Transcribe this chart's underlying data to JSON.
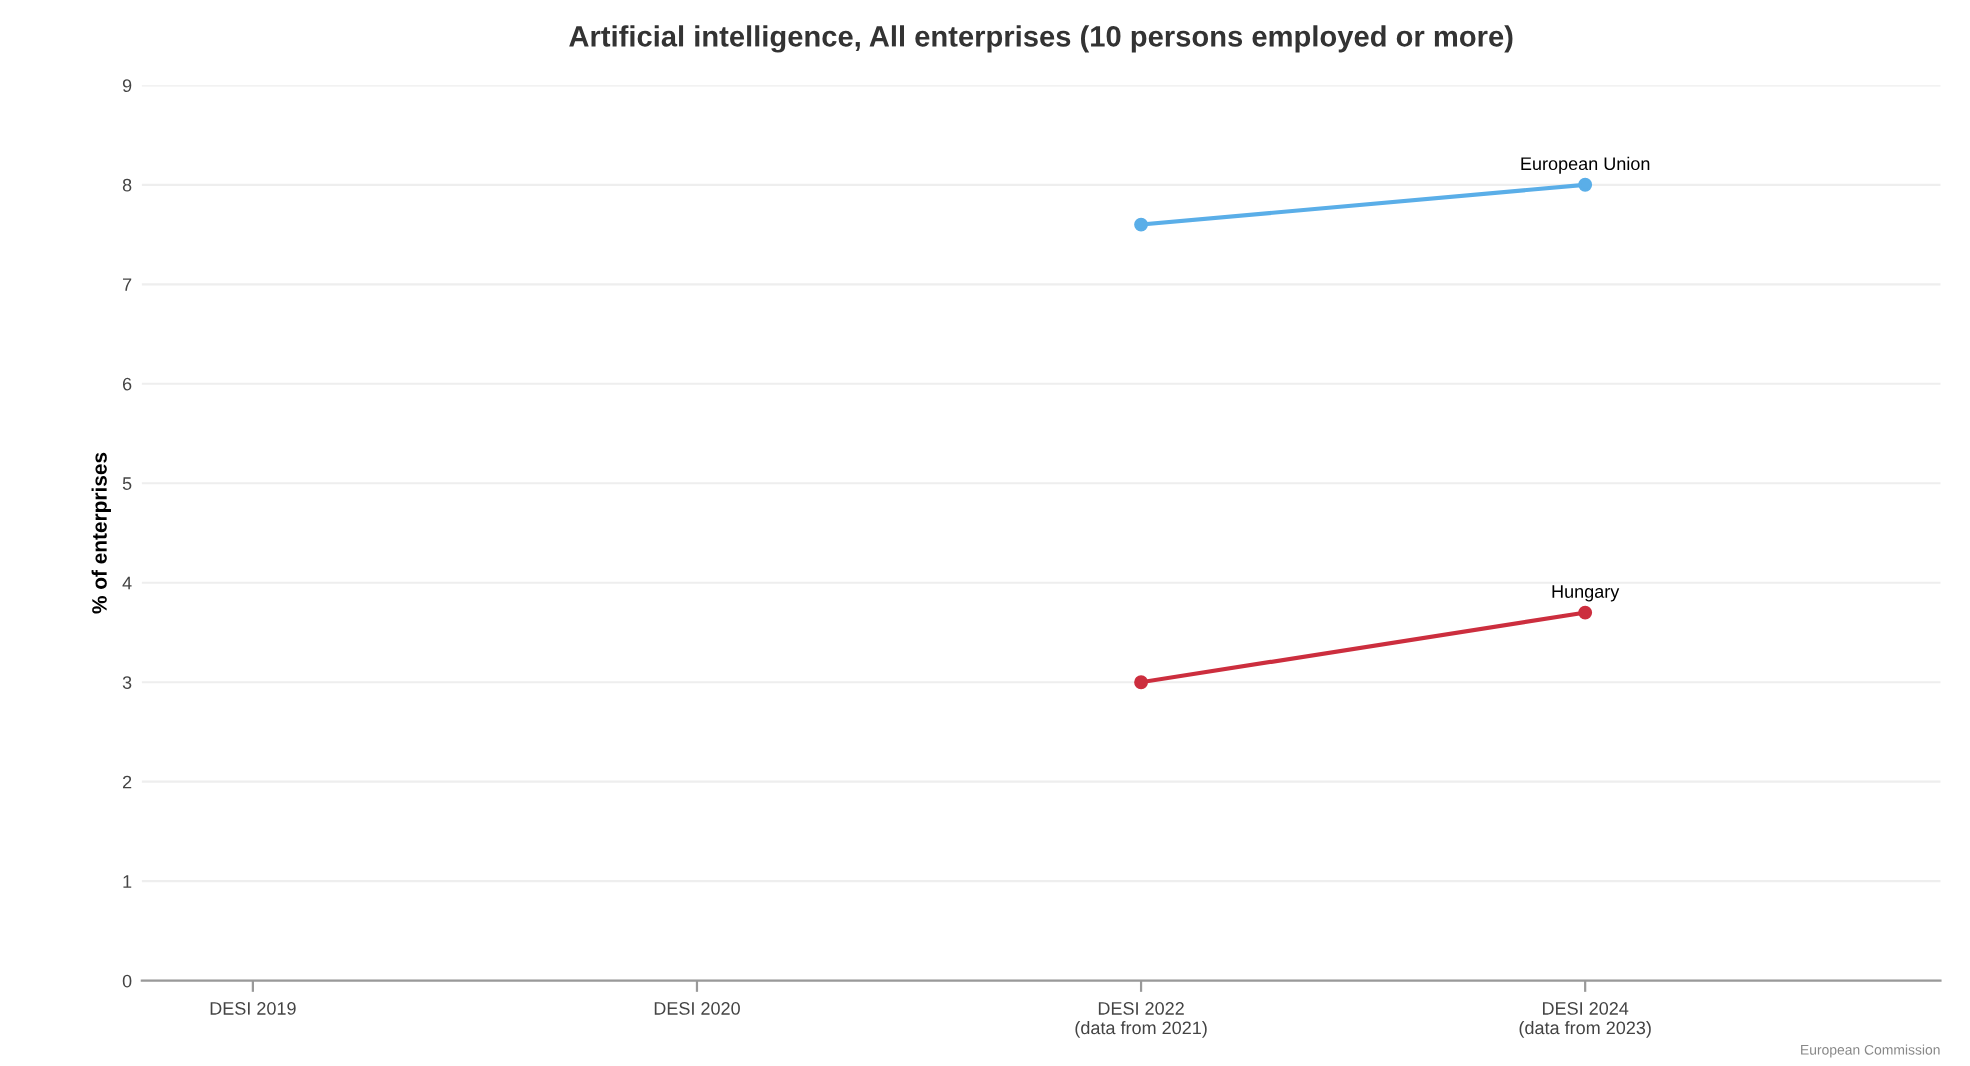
{
  "chart_data": {
    "type": "line",
    "title": "Artificial intelligence, All enterprises (10 persons employed or more)",
    "ylabel": "% of enterprises",
    "categories": [
      "DESI 2019",
      "DESI 2020",
      "DESI 2022\n(data from 2021)",
      "DESI 2024\n(data from 2023)"
    ],
    "series": [
      {
        "name": "European Union",
        "color": "#5aaee8",
        "values": [
          null,
          null,
          7.6,
          8.0
        ]
      },
      {
        "name": "Hungary",
        "color": "#cc2e3e",
        "values": [
          null,
          null,
          3.0,
          3.7
        ]
      }
    ],
    "ylim": [
      0,
      9
    ],
    "yticks": [
      0,
      1,
      2,
      3,
      4,
      5,
      6,
      7,
      8,
      9
    ],
    "grid": "y",
    "marker": "circle",
    "legend": false,
    "annotations": [
      "European Commission"
    ]
  }
}
